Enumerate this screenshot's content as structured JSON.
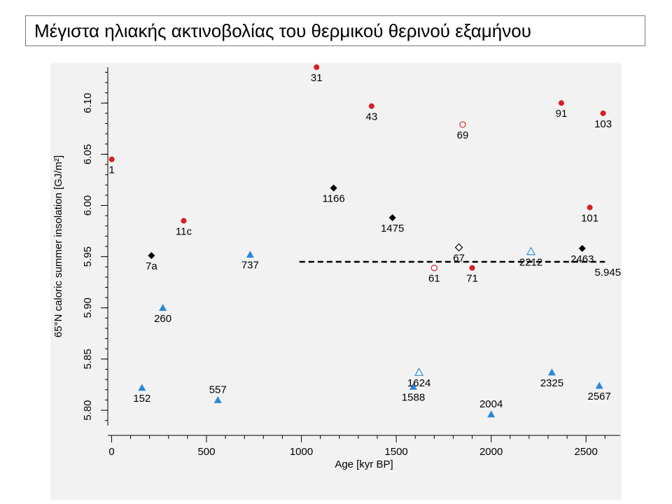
{
  "title": "Μέγιστα ηλιακής ακτινοβολίας του θερμικού θερινού εξαμήνου",
  "chart_data": {
    "type": "scatter",
    "xlabel": "Age [kyr BP]",
    "ylabel": "65°N caloric summer insolation [GJ/m²]",
    "xlim": [
      -20,
      2680
    ],
    "ylim": [
      5.785,
      6.135
    ],
    "xticks": [
      0,
      500,
      1000,
      1500,
      2000,
      2500
    ],
    "yticks": [
      5.8,
      5.85,
      5.9,
      5.95,
      6.0,
      6.05,
      6.1
    ],
    "ytick_labels": [
      "5.80",
      "5.85",
      "5.90",
      "5.95",
      "6.00",
      "6.05",
      "6.10"
    ],
    "threshold": {
      "value": 5.945,
      "label": "5.945",
      "x_start": 990,
      "x_end": 2600
    },
    "series": [
      {
        "marker": "circle-filled",
        "color": "#d41f26",
        "points": [
          {
            "x": 1,
            "y": 6.045,
            "label": "1"
          },
          {
            "x": 1080,
            "y": 6.135,
            "label": "31"
          },
          {
            "x": 380,
            "y": 5.985,
            "label": "11c"
          },
          {
            "x": 1370,
            "y": 6.097,
            "label": "43"
          },
          {
            "x": 1900,
            "y": 5.939,
            "label": "71"
          },
          {
            "x": 2370,
            "y": 6.1,
            "label": "91"
          },
          {
            "x": 2590,
            "y": 6.09,
            "label": "103"
          },
          {
            "x": 2520,
            "y": 5.998,
            "label": "101"
          }
        ]
      },
      {
        "marker": "triangle-filled",
        "color": "#2b87d8",
        "points": [
          {
            "x": 160,
            "y": 5.822,
            "label": "152"
          },
          {
            "x": 560,
            "y": 5.81,
            "label": "557"
          },
          {
            "x": 270,
            "y": 5.9,
            "label": "260"
          },
          {
            "x": 730,
            "y": 5.952,
            "label": "737"
          },
          {
            "x": 1590,
            "y": 5.823,
            "label": "1588"
          },
          {
            "x": 2000,
            "y": 5.796,
            "label": "2004"
          },
          {
            "x": 2320,
            "y": 5.837,
            "label": "2325"
          },
          {
            "x": 2570,
            "y": 5.824,
            "label": "2567"
          }
        ]
      },
      {
        "marker": "diamond-filled",
        "color": "#000000",
        "points": [
          {
            "x": 210,
            "y": 5.951,
            "label": "7a"
          },
          {
            "x": 1170,
            "y": 6.017,
            "label": "1166"
          },
          {
            "x": 1480,
            "y": 5.988,
            "label": "1475"
          },
          {
            "x": 2480,
            "y": 5.958,
            "label": "2463"
          }
        ]
      },
      {
        "marker": "circle-open",
        "color": "#d41f26",
        "points": [
          {
            "x": 1850,
            "y": 6.079,
            "label": "69"
          },
          {
            "x": 1700,
            "y": 5.939,
            "label": "61"
          }
        ]
      },
      {
        "marker": "triangle-open",
        "color": "#2b87d8",
        "points": [
          {
            "x": 1620,
            "y": 5.837,
            "label": "1624"
          },
          {
            "x": 2210,
            "y": 5.955,
            "label": "2212"
          }
        ]
      },
      {
        "marker": "diamond-open",
        "color": "#000000",
        "points": [
          {
            "x": 1830,
            "y": 5.959,
            "label": "67"
          }
        ]
      }
    ]
  }
}
